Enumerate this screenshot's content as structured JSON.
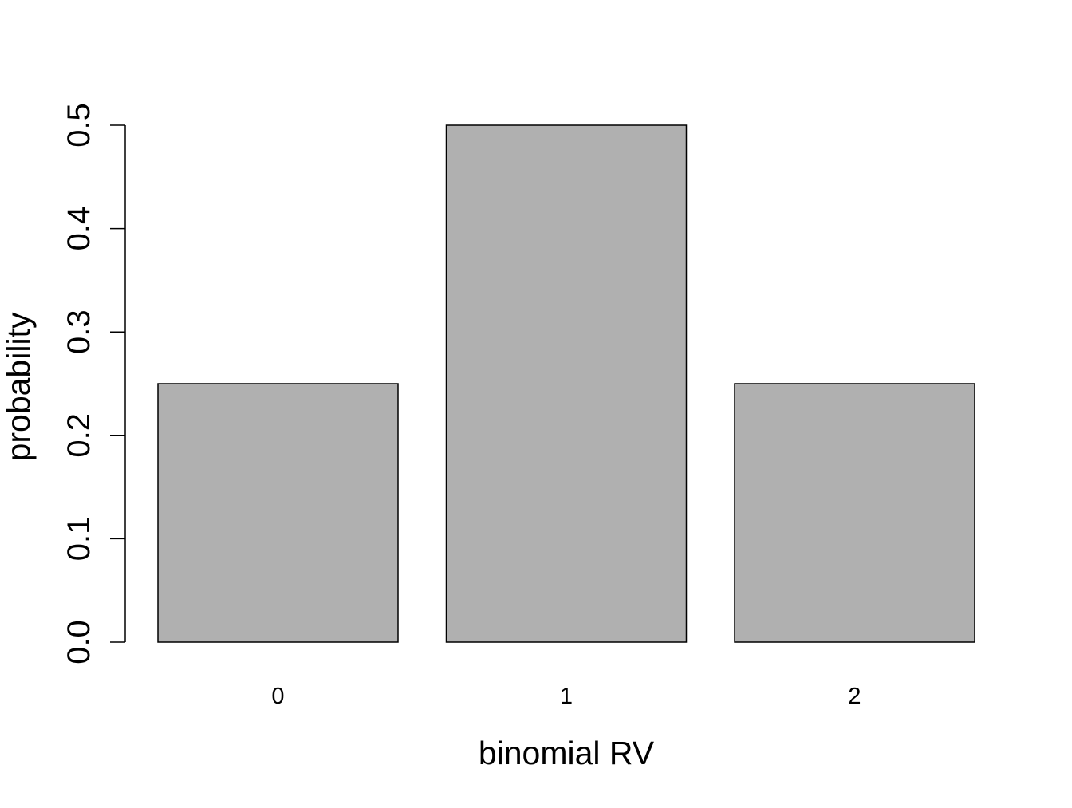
{
  "chart_data": {
    "type": "bar",
    "title": "",
    "xlabel": "binomial RV",
    "ylabel": "probability",
    "categories": [
      "0",
      "1",
      "2"
    ],
    "values": [
      0.25,
      0.5,
      0.25
    ],
    "ylim": [
      0,
      0.5
    ],
    "yticks": [
      "0.0",
      "0.1",
      "0.2",
      "0.3",
      "0.4",
      "0.5"
    ],
    "grid": false,
    "bar_fill": "#b0b0b0",
    "bar_stroke": "#000000"
  }
}
